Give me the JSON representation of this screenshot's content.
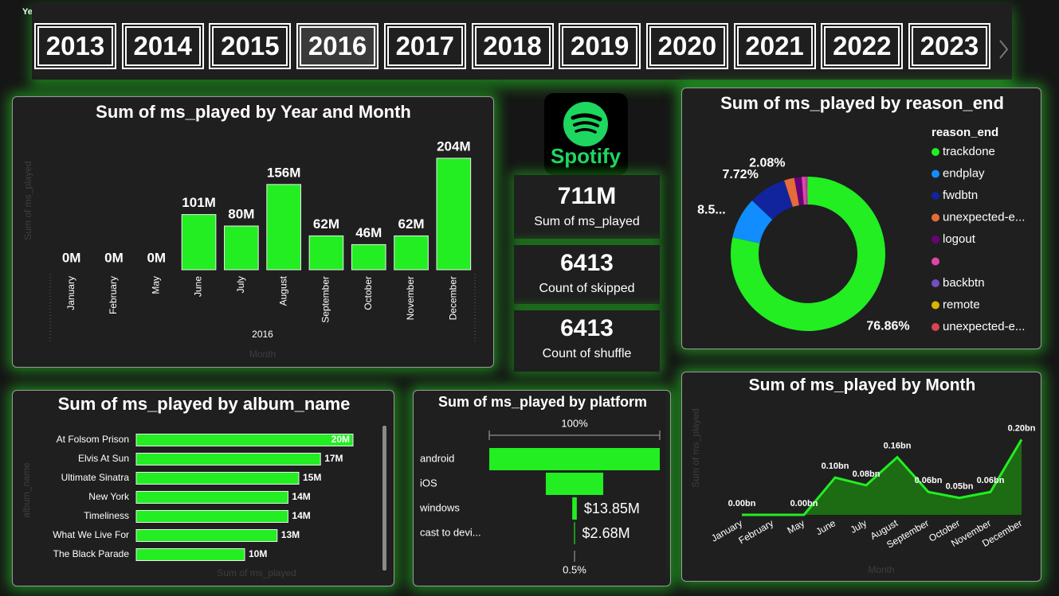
{
  "slicer": {
    "title": "Year",
    "items": [
      "2013",
      "2014",
      "2015",
      "2016",
      "2017",
      "2018",
      "2019",
      "2020",
      "2021",
      "2022",
      "2023"
    ],
    "selected": "2016"
  },
  "logo": {
    "text": "Spotify"
  },
  "kpis": [
    {
      "value": "711M",
      "label": "Sum of ms_played"
    },
    {
      "value": "6413",
      "label": "Count of skipped"
    },
    {
      "value": "6413",
      "label": "Count of shuffle"
    }
  ],
  "chart_data": [
    {
      "type": "bar",
      "title": "Sum of ms_played by Year and Month",
      "x_label": "Month",
      "y_label": "Sum of ms_played",
      "group_label": "2016",
      "categories": [
        "January",
        "February",
        "May",
        "June",
        "July",
        "August",
        "September",
        "October",
        "November",
        "December"
      ],
      "values": [
        0,
        0,
        0,
        101,
        80,
        156,
        62,
        46,
        62,
        204
      ],
      "value_labels": [
        "0M",
        "0M",
        "0M",
        "101M",
        "80M",
        "156M",
        "62M",
        "46M",
        "62M",
        "204M"
      ],
      "color": "#22ee22",
      "ylim": [
        0,
        230
      ]
    },
    {
      "type": "donut",
      "title": "Sum of ms_played by reason_end",
      "legend_title": "reason_end",
      "legend": "right",
      "categories": [
        "trackdone",
        "endplay",
        "fwdbtn",
        "unexpected-e...",
        "logout",
        null,
        "backbtn",
        "remote",
        "unexpected-e..."
      ],
      "values": [
        76.86,
        8.55,
        7.72,
        2.08,
        1.5,
        0.8,
        0.3,
        0.1,
        0.1
      ],
      "value_labels": [
        "76.86%",
        "8.5...",
        "7.72%",
        "2.08%",
        null,
        null,
        null,
        null,
        null
      ],
      "colors": [
        "#22ee22",
        "#118dff",
        "#12239e",
        "#e66c37",
        "#6b007b",
        "#e044a7",
        "#744ec2",
        "#d9b300",
        "#d64550"
      ]
    },
    {
      "type": "hbar",
      "title": "Sum of ms_played by album_name",
      "x_label": "Sum of ms_played",
      "y_label": "album_name",
      "categories": [
        "At Folsom Prison",
        "Elvis At Sun",
        "Ultimate Sinatra",
        "New York",
        "Timeliness",
        "What We Live For",
        "The Black Parade"
      ],
      "values": [
        20,
        17,
        15,
        14,
        14,
        13,
        10
      ],
      "value_labels": [
        "20M",
        "17M",
        "15M",
        "14M",
        "14M",
        "13M",
        "10M"
      ],
      "color": "#22ee22",
      "xlim": [
        0,
        20
      ]
    },
    {
      "type": "funnel",
      "title": "Sum of ms_played by platform",
      "top_label": "100%",
      "bottom_label": "0.5%",
      "categories": [
        "android",
        "iOS",
        "windows",
        "cast to devi..."
      ],
      "values": [
        519.5,
        175,
        13.85,
        2.68
      ],
      "value_labels": [
        null,
        null,
        "$13.85M",
        "$2.68M"
      ],
      "color": "#22ee22"
    },
    {
      "type": "area",
      "title": "Sum of ms_played by Month",
      "x_label": "Month",
      "y_label": "Sum of ms_played",
      "categories": [
        "January",
        "February",
        "May",
        "June",
        "July",
        "August",
        "September",
        "October",
        "November",
        "December"
      ],
      "values": [
        0,
        0,
        0,
        0.101,
        0.08,
        0.156,
        0.062,
        0.046,
        0.062,
        0.204
      ],
      "value_labels": [
        "0.00bn",
        null,
        "0.00bn",
        "0.10bn",
        "0.08bn",
        "0.16bn",
        "0.06bn",
        "0.05bn",
        "0.06bn",
        "0.20bn"
      ],
      "color": "#22ee22",
      "fill": "#1d6b12",
      "ylim": [
        0,
        0.22
      ]
    }
  ]
}
